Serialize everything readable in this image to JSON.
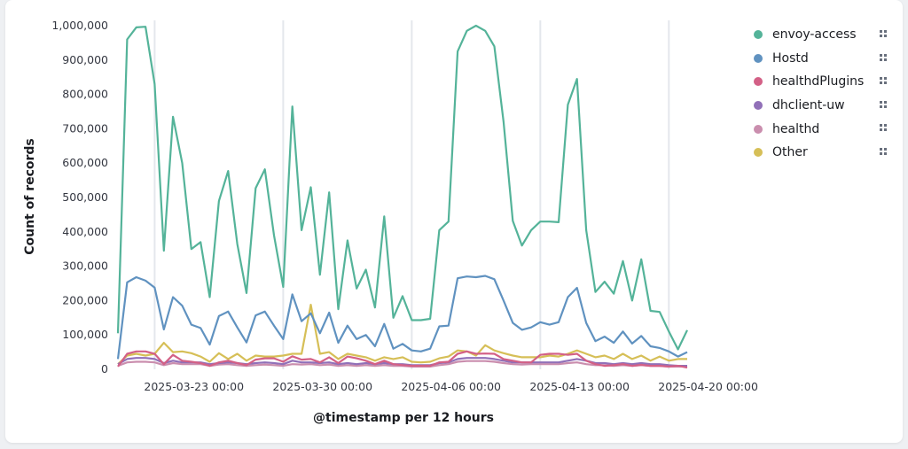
{
  "chart_data": {
    "type": "line",
    "xlabel": "@timestamp per 12 hours",
    "ylabel": "Count of records",
    "ylim": [
      0,
      1000000
    ],
    "yticks": [
      "0",
      "100,000",
      "200,000",
      "300,000",
      "400,000",
      "500,000",
      "600,000",
      "700,000",
      "800,000",
      "900,000",
      "1,000,000"
    ],
    "ytick_values": [
      0,
      100000,
      200000,
      300000,
      400000,
      500000,
      600000,
      700000,
      800000,
      900000,
      1000000
    ],
    "xticks": [
      "2025-03-23 00:00",
      "2025-03-30 00:00",
      "2025-04-06 00:00",
      "2025-04-13 00:00",
      "2025-04-20 00:00"
    ],
    "xtick_index": [
      4,
      18,
      32,
      46,
      60
    ],
    "x_start": "2025-03-21 00:00",
    "interval": "12 hours",
    "legend_position": "right",
    "grid": "x",
    "series": [
      {
        "name": "envoy-access",
        "color": "#54B399",
        "values": [
          105000,
          960000,
          995000,
          997000,
          830000,
          345000,
          735000,
          600000,
          350000,
          370000,
          210000,
          490000,
          577000,
          365000,
          222000,
          527000,
          582000,
          390000,
          240000,
          765000,
          405000,
          530000,
          275000,
          515000,
          175000,
          375000,
          235000,
          290000,
          180000,
          445000,
          150000,
          213000,
          143000,
          143000,
          147000,
          405000,
          430000,
          925000,
          985000,
          1000000,
          985000,
          940000,
          720000,
          432000,
          360000,
          405000,
          430000,
          430000,
          428000,
          770000,
          845000,
          405000,
          225000,
          255000,
          220000,
          315000,
          200000,
          320000,
          170000,
          167000,
          110000,
          58000,
          114000
        ]
      },
      {
        "name": "Hostd",
        "color": "#6092C0",
        "values": [
          30000,
          253000,
          268000,
          258000,
          238000,
          116000,
          210000,
          185000,
          130000,
          120000,
          72000,
          155000,
          168000,
          122000,
          78000,
          157000,
          168000,
          127000,
          88000,
          218000,
          140000,
          163000,
          105000,
          165000,
          77000,
          127000,
          88000,
          100000,
          67000,
          132000,
          60000,
          74000,
          55000,
          52000,
          60000,
          125000,
          127000,
          265000,
          270000,
          268000,
          272000,
          262000,
          200000,
          135000,
          115000,
          122000,
          137000,
          130000,
          137000,
          210000,
          237000,
          135000,
          82000,
          95000,
          77000,
          110000,
          75000,
          97000,
          67000,
          62000,
          52000,
          37000,
          50000
        ]
      },
      {
        "name": "healthdPlugins",
        "color": "#D36086",
        "values": [
          8000,
          45000,
          52000,
          52000,
          45000,
          15000,
          42000,
          25000,
          22000,
          18000,
          10000,
          20000,
          25000,
          18000,
          12000,
          28000,
          32000,
          32000,
          22000,
          38000,
          28000,
          30000,
          20000,
          35000,
          18000,
          37000,
          32000,
          25000,
          15000,
          25000,
          15000,
          12000,
          10000,
          10000,
          10000,
          20000,
          22000,
          45000,
          52000,
          45000,
          46000,
          45000,
          30000,
          25000,
          20000,
          20000,
          42000,
          45000,
          45000,
          42000,
          45000,
          25000,
          15000,
          10000,
          12000,
          15000,
          10000,
          13000,
          10000,
          10000,
          8000,
          10000,
          5000
        ]
      },
      {
        "name": "dhclient-uw",
        "color": "#9170B8",
        "values": [
          15000,
          30000,
          33000,
          33000,
          30000,
          18000,
          25000,
          20000,
          20000,
          20000,
          15000,
          18000,
          20000,
          18000,
          15000,
          18000,
          20000,
          18000,
          15000,
          25000,
          20000,
          20000,
          18000,
          20000,
          15000,
          18000,
          15000,
          18000,
          15000,
          18000,
          15000,
          15000,
          12000,
          12000,
          12000,
          18000,
          20000,
          30000,
          33000,
          33000,
          33000,
          30000,
          25000,
          20000,
          20000,
          20000,
          20000,
          20000,
          20000,
          25000,
          30000,
          25000,
          18000,
          18000,
          15000,
          18000,
          15000,
          18000,
          15000,
          15000,
          12000,
          10000,
          10000
        ]
      },
      {
        "name": "healthd",
        "color": "#CA8EAE",
        "values": [
          10000,
          20000,
          22000,
          22000,
          20000,
          12000,
          18000,
          15000,
          15000,
          15000,
          10000,
          14000,
          15000,
          12000,
          10000,
          12000,
          14000,
          12000,
          10000,
          15000,
          14000,
          15000,
          12000,
          14000,
          10000,
          12000,
          10000,
          12000,
          10000,
          12000,
          10000,
          10000,
          8000,
          8000,
          8000,
          12000,
          15000,
          22000,
          24000,
          24000,
          24000,
          22000,
          18000,
          15000,
          14000,
          15000,
          15000,
          15000,
          15000,
          18000,
          20000,
          15000,
          12000,
          12000,
          10000,
          12000,
          10000,
          12000,
          10000,
          10000,
          8000,
          8000,
          8000
        ]
      },
      {
        "name": "Other",
        "color": "#D6BF57",
        "values": [
          15000,
          40000,
          45000,
          40000,
          45000,
          77000,
          50000,
          52000,
          47000,
          37000,
          22000,
          47000,
          30000,
          45000,
          25000,
          40000,
          37000,
          37000,
          40000,
          45000,
          45000,
          188000,
          45000,
          50000,
          30000,
          45000,
          40000,
          35000,
          25000,
          35000,
          30000,
          35000,
          22000,
          20000,
          22000,
          32000,
          37000,
          55000,
          52000,
          40000,
          70000,
          55000,
          47000,
          40000,
          35000,
          35000,
          35000,
          40000,
          37000,
          45000,
          55000,
          45000,
          35000,
          40000,
          30000,
          45000,
          30000,
          40000,
          25000,
          37000,
          25000,
          30000,
          30000
        ]
      }
    ]
  }
}
